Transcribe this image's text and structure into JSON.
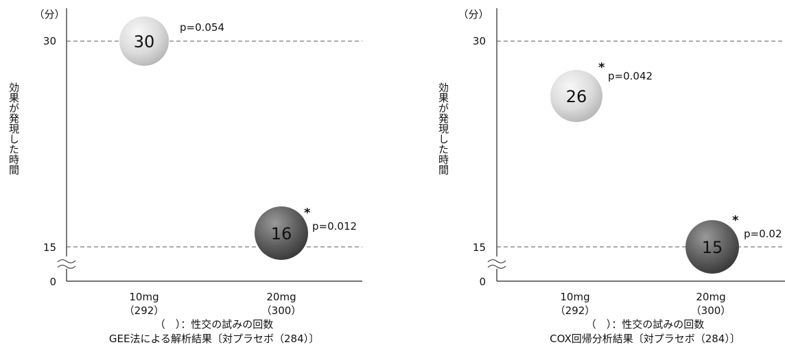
{
  "charts": [
    {
      "unit_label": "（分）",
      "ylabel": "効果が発現した時間",
      "footnote": "（　）：性交の試みの回数",
      "caption": "GEE法による解析結果〔対プラセボ（284）〕"
    },
    {
      "unit_label": "（分）",
      "ylabel": "効果が発現した時間",
      "footnote": "（　）：性交の試みの回数",
      "caption": "COX回帰分析結果〔対プラセボ（284）〕"
    }
  ],
  "chart_data": [
    {
      "type": "scatter",
      "yticks": [
        "0",
        "15",
        "30"
      ],
      "gridlines": [
        15,
        30
      ],
      "axis_break": "between 0 and 15",
      "categories": [
        {
          "dose": "10mg",
          "count": "（292）"
        },
        {
          "dose": "20mg",
          "count": "（300）"
        }
      ],
      "points": [
        {
          "category": "10mg",
          "value": 30,
          "label": "30",
          "p": "p=0.054",
          "significant": false,
          "color": "#e2e2e2"
        },
        {
          "category": "20mg",
          "value": 16,
          "label": "16",
          "p": "p=0.012",
          "significant": true,
          "color": "#5a5a5a"
        }
      ],
      "ylabel": "効果が発現した時間",
      "ylim": [
        0,
        30
      ]
    },
    {
      "type": "scatter",
      "yticks": [
        "0",
        "15",
        "30"
      ],
      "gridlines": [
        15,
        30
      ],
      "axis_break": "between 0 and 15",
      "categories": [
        {
          "dose": "10mg",
          "count": "（292）"
        },
        {
          "dose": "20mg",
          "count": "（300）"
        }
      ],
      "points": [
        {
          "category": "10mg",
          "value": 26,
          "label": "26",
          "p": "p=0.042",
          "significant": true,
          "color": "#e2e2e2"
        },
        {
          "category": "20mg",
          "value": 15,
          "label": "15",
          "p": "p=0.02",
          "significant": true,
          "color": "#5a5a5a"
        }
      ],
      "ylabel": "効果が発現した時間",
      "ylim": [
        0,
        30
      ]
    }
  ]
}
